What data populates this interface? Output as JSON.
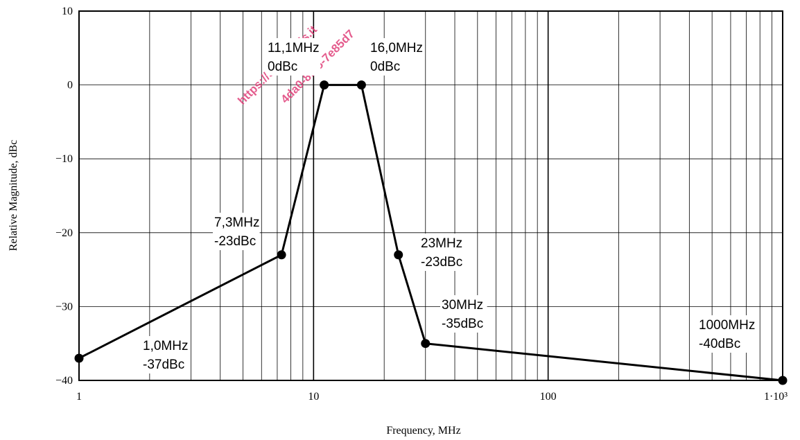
{
  "chart_data": {
    "type": "line",
    "xscale": "log",
    "xlim": [
      1,
      1000
    ],
    "ylim": [
      -40,
      10
    ],
    "xlabel": "Frequency, MHz",
    "ylabel": "Relative Magnitude, dBc",
    "x_ticks": [
      "1",
      "10",
      "100",
      "1·10³"
    ],
    "y_ticks": [
      "10",
      "0",
      "−10",
      "−20",
      "−30",
      "−40"
    ],
    "grid": true,
    "line_color": "#000000",
    "points": [
      {
        "x": 1.0,
        "y": -37
      },
      {
        "x": 7.3,
        "y": -23
      },
      {
        "x": 11.1,
        "y": 0
      },
      {
        "x": 16.0,
        "y": 0
      },
      {
        "x": 23,
        "y": -23
      },
      {
        "x": 30,
        "y": -35
      },
      {
        "x": 1000,
        "y": -40
      }
    ],
    "annotations": [
      {
        "x": 1.0,
        "lines": [
          "1,0MHz",
          "-37dBc"
        ]
      },
      {
        "x": 7.3,
        "lines": [
          "7,3MHz",
          "-23dBc"
        ]
      },
      {
        "x": 11.1,
        "lines": [
          "11,1MHz",
          "0dBc"
        ]
      },
      {
        "x": 16.0,
        "lines": [
          "16,0MHz",
          "0dBc"
        ]
      },
      {
        "x": 23,
        "lines": [
          "23MHz",
          "-23dBc"
        ]
      },
      {
        "x": 30,
        "lines": [
          "30MHz",
          "-35dBc"
        ]
      },
      {
        "x": 1000,
        "lines": [
          "1000MHz",
          "-40dBc"
        ]
      }
    ]
  },
  "watermark": {
    "lines": [
      "https://standards.it",
      "4da0-8f35-7e85d7"
    ],
    "color": "#e0407a"
  }
}
